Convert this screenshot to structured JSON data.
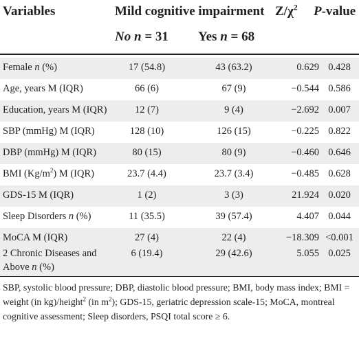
{
  "table": {
    "header": {
      "variables": "Variables",
      "group_title": "Mild cognitive impairment",
      "z_label": "Z/χ",
      "z_sup": "2",
      "p_label": "P",
      "p_suffix": "-value",
      "no_label": "No",
      "no_n": "n",
      "no_eq": "= 31",
      "yes_label": "Yes",
      "yes_n": "n",
      "yes_eq": "= 68"
    },
    "rows": [
      {
        "pre": "Female ",
        "it": "n",
        "post": " (%)",
        "no": "17 (54.8)",
        "yes": "43 (63.2)",
        "z": "0.629",
        "p": "0.428"
      },
      {
        "pre": "Age, years M (IQR)",
        "it": "",
        "post": "",
        "no": "66 (6)",
        "yes": "67 (9)",
        "z": "−0.544",
        "p": "0.586"
      },
      {
        "pre": "Education, years M (IQR)",
        "it": "",
        "post": "",
        "no": "12 (7)",
        "yes": "9 (4)",
        "z": "−2.692",
        "p": "0.007"
      },
      {
        "pre": "SBP (mmHg) M (IQR)",
        "it": "",
        "post": "",
        "no": "128 (10)",
        "yes": "126 (15)",
        "z": "−0.225",
        "p": "0.822"
      },
      {
        "pre": "DBP (mmHg) M (IQR)",
        "it": "",
        "post": "",
        "no": "80 (15)",
        "yes": "80 (9)",
        "z": "−0.460",
        "p": "0.646"
      },
      {
        "pre": "BMI (Kg/m",
        "sup": "2",
        "post2": ") M (IQR)",
        "no": "23.7 (4.4)",
        "yes": "23.7 (3.4)",
        "z": "−0.485",
        "p": "0.628"
      },
      {
        "pre": "GDS-15 M (IQR)",
        "it": "",
        "post": "",
        "no": "1 (2)",
        "yes": "3 (3)",
        "z": "21.924",
        "p": "0.020"
      },
      {
        "pre": "Sleep Disorders ",
        "it": "n",
        "post": " (%)",
        "no": "11 (35.5)",
        "yes": "39 (57.4)",
        "z": "4.407",
        "p": "0.044"
      },
      {
        "pre": "MoCA M (IQR)",
        "it": "",
        "post": "",
        "no": "27 (4)",
        "yes": "22 (4)",
        "z": "−18.309",
        "p": "<0.001"
      }
    ],
    "last_row": {
      "line1": "2 Chronic Diseases and",
      "line2_pre": "Above ",
      "line2_it": "n",
      "line2_post": " (%)",
      "no": "6 (19.4)",
      "yes": "29 (42.6)",
      "z": "5.055",
      "p": "0.025"
    }
  },
  "footnote": {
    "part1": "SBP, systolic blood pressure; DBP, diastolic blood pressure; BMI, body mass index; BMI = weight (in kg)/height",
    "sup1": "2",
    "part2": " (in m",
    "sup2": "2",
    "part3": "); GDS-15, geriatric depression scale-15; MoCA, montreal cognitive assessment; Sleep disorders, PSQI total score ≥ 6."
  }
}
